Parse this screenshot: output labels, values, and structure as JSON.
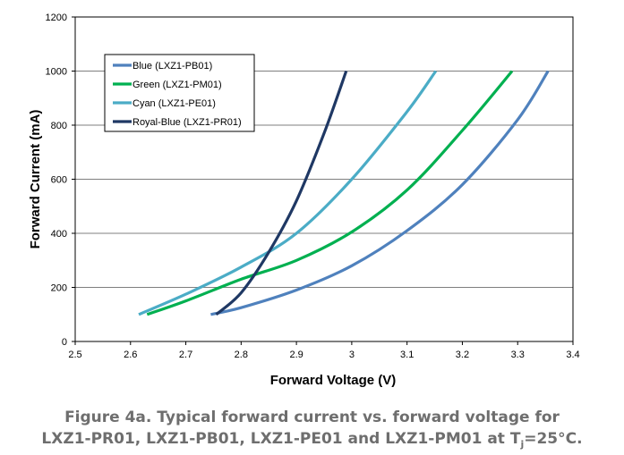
{
  "chart_data": {
    "type": "line",
    "xlabel": "Forward Voltage (V)",
    "ylabel": "Forward Current (mA)",
    "xlim": [
      2.5,
      3.4
    ],
    "ylim": [
      0,
      1200
    ],
    "xticks": [
      "2.5",
      "2.6",
      "2.7",
      "2.8",
      "2.9",
      "3",
      "3.1",
      "3.2",
      "3.3",
      "3.4"
    ],
    "yticks": [
      "0",
      "200",
      "400",
      "600",
      "800",
      "1000",
      "1200"
    ],
    "grid": "horizontal",
    "legend_position": "top-left",
    "series": [
      {
        "name": "Blue (LXZ1-PB01)",
        "color": "#4f81bd",
        "x": [
          2.745,
          2.8,
          2.9,
          3.0,
          3.1,
          3.2,
          3.3,
          3.355
        ],
        "y": [
          100,
          125,
          190,
          280,
          410,
          580,
          820,
          1000
        ]
      },
      {
        "name": "Green (LXZ1-PM01)",
        "color": "#00b050",
        "x": [
          2.63,
          2.7,
          2.8,
          2.9,
          3.0,
          3.1,
          3.2,
          3.29
        ],
        "y": [
          100,
          150,
          230,
          300,
          405,
          560,
          780,
          1000
        ]
      },
      {
        "name": "Cyan (LXZ1-PE01)",
        "color": "#4bacc6",
        "x": [
          2.615,
          2.7,
          2.8,
          2.9,
          3.0,
          3.1,
          3.152
        ],
        "y": [
          100,
          175,
          275,
          400,
          600,
          850,
          1000
        ]
      },
      {
        "name": "Royal-Blue (LXZ1-PR01)",
        "color": "#1f3864",
        "x": [
          2.755,
          2.8,
          2.85,
          2.9,
          2.95,
          2.99
        ],
        "y": [
          100,
          180,
          330,
          520,
          770,
          1000
        ]
      }
    ]
  },
  "caption": {
    "line1": "Figure 4a. Typical forward current vs. forward voltage for",
    "line2_prefix": "LXZ1-PR01, LXZ1-PB01, LXZ1-PE01 and LXZ1-PM01 at T",
    "line2_sub": "j",
    "line2_suffix": "=25°C."
  }
}
